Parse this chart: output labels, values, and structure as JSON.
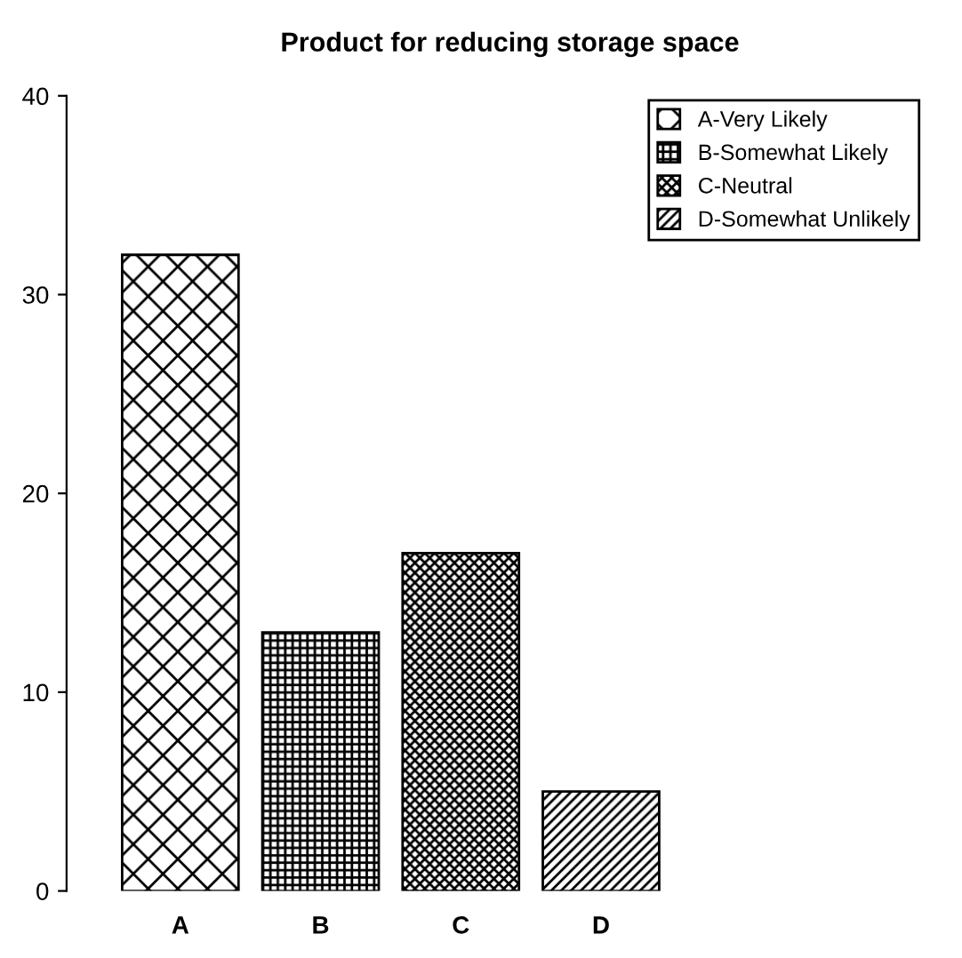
{
  "chart_data": {
    "type": "bar",
    "title": "Product for reducing storage space",
    "categories": [
      "A",
      "B",
      "C",
      "D"
    ],
    "series": [
      {
        "name": "A-Very Likely",
        "color": "#000000",
        "values": [
          32,
          null,
          null,
          null
        ]
      },
      {
        "name": "B-Somewhat Likely",
        "color": "#000000",
        "values": [
          null,
          13,
          null,
          null
        ]
      },
      {
        "name": "C-Neutral",
        "color": "#000000",
        "values": [
          null,
          null,
          17,
          null
        ]
      },
      {
        "name": "D-Somewhat Unlikely",
        "color": "#000000",
        "values": [
          null,
          null,
          null,
          5
        ]
      }
    ],
    "ylim": [
      0,
      40
    ],
    "yticks": [
      0,
      10,
      20,
      30,
      40
    ],
    "grid": false,
    "legend": "top right"
  }
}
